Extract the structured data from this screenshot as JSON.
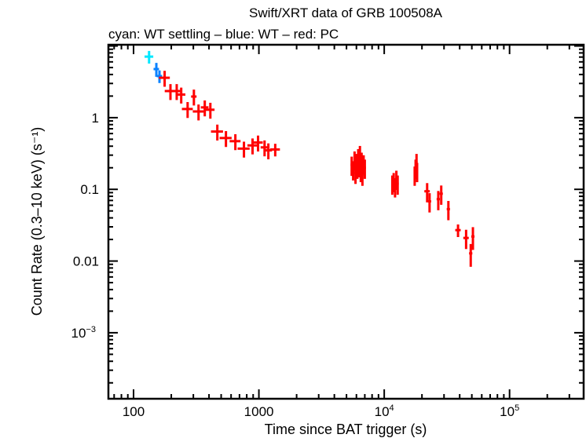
{
  "chart_data": {
    "type": "scatter",
    "title": "Swift/XRT data of GRB 100508A",
    "subtitle": "cyan: WT settling – blue: WT – red: PC",
    "xlabel": "Time since BAT trigger (s)",
    "ylabel": "Count Rate (0.3–10 keV) (s⁻¹)",
    "xscale": "log",
    "yscale": "log",
    "xlim": [
      63,
      390000
    ],
    "ylim": [
      0.00012,
      10.4
    ],
    "grid": false,
    "x_ticks": [
      {
        "value": 100,
        "label": "100"
      },
      {
        "value": 1000,
        "label": "1000"
      },
      {
        "value": 10000,
        "label": "10",
        "exp": "4"
      },
      {
        "value": 100000,
        "label": "10",
        "exp": "5"
      }
    ],
    "y_ticks": [
      {
        "value": 1,
        "label": "1"
      },
      {
        "value": 0.1,
        "label": "0.1"
      },
      {
        "value": 0.01,
        "label": "0.01"
      },
      {
        "value": 0.001,
        "label": "10",
        "exp": "−3"
      }
    ],
    "series": [
      {
        "name": "WT settling",
        "color": "#00e8ff",
        "points": [
          [
            133,
            0.08,
            7.1,
            0.2
          ]
        ]
      },
      {
        "name": "WT",
        "color": "#0a82ff",
        "points": [
          [
            152,
            0.05,
            4.76,
            0.22
          ],
          [
            161,
            0.05,
            3.8,
            0.2
          ]
        ]
      },
      {
        "name": "PC",
        "color": "#ff0000",
        "points": [
          [
            177,
            0.1,
            3.6,
            0.25
          ],
          [
            197,
            0.1,
            2.35,
            0.25
          ],
          [
            221,
            0.1,
            2.35,
            0.25
          ],
          [
            240,
            0.08,
            2.1,
            0.25
          ],
          [
            270,
            0.1,
            1.32,
            0.25
          ],
          [
            303,
            0.05,
            1.97,
            0.25
          ],
          [
            330,
            0.1,
            1.22,
            0.25
          ],
          [
            370,
            0.07,
            1.39,
            0.25
          ],
          [
            410,
            0.08,
            1.29,
            0.25
          ],
          [
            466,
            0.11,
            0.64,
            0.25
          ],
          [
            546,
            0.11,
            0.52,
            0.25
          ],
          [
            649,
            0.1,
            0.47,
            0.25
          ],
          [
            760,
            0.11,
            0.37,
            0.25
          ],
          [
            890,
            0.09,
            0.41,
            0.25
          ],
          [
            985,
            0.09,
            0.45,
            0.25
          ],
          [
            1110,
            0.07,
            0.385,
            0.25
          ],
          [
            1190,
            0.07,
            0.35,
            0.25
          ],
          [
            1350,
            0.09,
            0.36,
            0.2
          ],
          [
            5500,
            0.02,
            0.22,
            0.3
          ],
          [
            5650,
            0.02,
            0.19,
            0.3
          ],
          [
            5800,
            0.02,
            0.26,
            0.3
          ],
          [
            5900,
            0.02,
            0.17,
            0.3
          ],
          [
            6000,
            0.02,
            0.24,
            0.3
          ],
          [
            6100,
            0.02,
            0.2,
            0.3
          ],
          [
            6200,
            0.02,
            0.28,
            0.3
          ],
          [
            6300,
            0.02,
            0.21,
            0.3
          ],
          [
            6400,
            0.02,
            0.31,
            0.3
          ],
          [
            6500,
            0.02,
            0.18,
            0.3
          ],
          [
            6600,
            0.02,
            0.25,
            0.3
          ],
          [
            6700,
            0.02,
            0.16,
            0.3
          ],
          [
            6850,
            0.02,
            0.23,
            0.3
          ],
          [
            7000,
            0.02,
            0.2,
            0.3
          ],
          [
            11600,
            0.02,
            0.12,
            0.3
          ],
          [
            11900,
            0.02,
            0.13,
            0.3
          ],
          [
            12200,
            0.02,
            0.11,
            0.3
          ],
          [
            12500,
            0.02,
            0.14,
            0.3
          ],
          [
            12800,
            0.02,
            0.12,
            0.3
          ],
          [
            17500,
            0.02,
            0.16,
            0.3
          ],
          [
            17800,
            0.02,
            0.2,
            0.3
          ],
          [
            18100,
            0.02,
            0.24,
            0.3
          ],
          [
            18300,
            0.02,
            0.18,
            0.3
          ],
          [
            22000,
            0.05,
            0.094,
            0.3
          ],
          [
            23000,
            0.03,
            0.068,
            0.3
          ],
          [
            27000,
            0.03,
            0.073,
            0.3
          ],
          [
            28500,
            0.03,
            0.087,
            0.3
          ],
          [
            32500,
            0.03,
            0.053,
            0.3
          ],
          [
            38800,
            0.05,
            0.027,
            0.2
          ],
          [
            45000,
            0.05,
            0.021,
            0.3
          ],
          [
            51000,
            0.03,
            0.022,
            0.35
          ],
          [
            49000,
            0.03,
            0.0128,
            0.35
          ]
        ]
      }
    ]
  }
}
